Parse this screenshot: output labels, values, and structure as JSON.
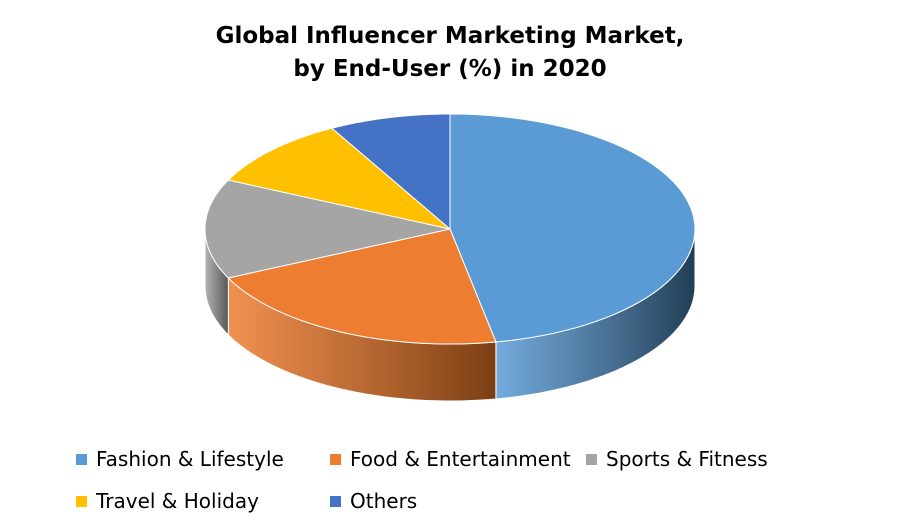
{
  "chart_data": {
    "type": "pie",
    "title": [
      "Global Influencer Marketing Market,",
      "by End-User (%) in 2020"
    ],
    "slices": [
      {
        "label": "Fashion & Lifestyle",
        "value": 47,
        "color": "#5B9BD5",
        "side": "#223E55"
      },
      {
        "label": "Food & Entertainment",
        "value": 21,
        "color": "#ED7D31",
        "side": "#7A3E14"
      },
      {
        "label": "Sports & Fitness",
        "value": 14,
        "color": "#A5A5A5",
        "side": "#555555"
      },
      {
        "label": "Travel & Holiday",
        "value": 10,
        "color": "#FFC000",
        "side": "#7F6000"
      },
      {
        "label": "Others",
        "value": 8,
        "color": "#4472C4",
        "side": "#22395F"
      }
    ],
    "legend": {
      "position": "bottom"
    }
  }
}
